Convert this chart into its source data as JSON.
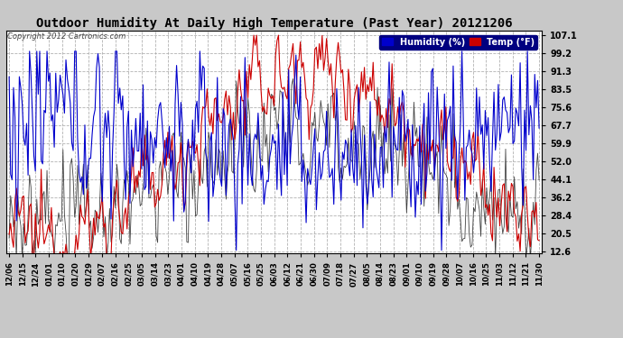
{
  "title": "Outdoor Humidity At Daily High Temperature (Past Year) 20121206",
  "copyright": "Copyright 2012 Cartronics.com",
  "legend_humidity": "Humidity (%)",
  "legend_temp": "Temp (°F)",
  "bg_color": "#c8c8c8",
  "plot_bg_color": "#ffffff",
  "humidity_color": "#0000cc",
  "temp_color": "#cc0000",
  "dark_color": "#222222",
  "title_fontsize": 10,
  "yticks": [
    12.6,
    20.5,
    28.4,
    36.2,
    44.1,
    52.0,
    59.9,
    67.7,
    75.6,
    83.5,
    91.3,
    99.2,
    107.1
  ],
  "xtick_labels": [
    "12/06",
    "12/15",
    "12/24",
    "01/01",
    "01/10",
    "01/20",
    "01/29",
    "02/07",
    "02/16",
    "02/25",
    "03/05",
    "03/14",
    "03/23",
    "04/01",
    "04/10",
    "04/19",
    "04/28",
    "05/07",
    "05/16",
    "05/25",
    "06/03",
    "06/12",
    "06/21",
    "06/30",
    "07/09",
    "07/18",
    "07/27",
    "08/05",
    "08/14",
    "08/23",
    "09/01",
    "09/10",
    "09/19",
    "09/28",
    "10/07",
    "10/16",
    "10/25",
    "11/03",
    "11/12",
    "11/21",
    "11/30"
  ],
  "ylim_min": 12.6,
  "ylim_max": 107.1,
  "n_points": 365
}
